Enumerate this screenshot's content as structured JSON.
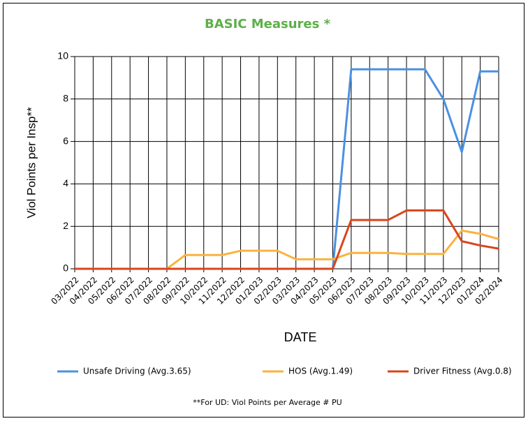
{
  "chart_data": {
    "type": "line",
    "title": "BASIC Measures *",
    "x_label": "DATE",
    "y_label": "Viol Points per Insp**",
    "footnote": "**For UD: Viol Points per Average # PU",
    "categories": [
      "03/2022",
      "04/2022",
      "05/2022",
      "06/2022",
      "07/2022",
      "08/2022",
      "09/2022",
      "10/2022",
      "11/2022",
      "12/2022",
      "01/2023",
      "02/2023",
      "03/2023",
      "04/2023",
      "05/2023",
      "06/2023",
      "07/2023",
      "08/2023",
      "09/2023",
      "10/2023",
      "11/2023",
      "12/2023",
      "01/2024",
      "02/2024"
    ],
    "series": [
      {
        "name": "Unsafe Driving (Avg.3.65)",
        "color": "#4a90e2",
        "values": [
          0,
          0,
          0,
          0,
          0,
          0,
          0,
          0,
          0,
          0,
          0,
          0,
          0,
          0,
          0,
          9.4,
          9.4,
          9.4,
          9.4,
          9.4,
          8.0,
          5.5,
          9.3,
          9.3
        ]
      },
      {
        "name": "HOS (Avg.1.49)",
        "color": "#fbb23f",
        "values": [
          0,
          0,
          0,
          0,
          0,
          0,
          0.65,
          0.65,
          0.65,
          0.85,
          0.85,
          0.85,
          0.45,
          0.45,
          0.45,
          0.75,
          0.75,
          0.75,
          0.7,
          0.7,
          0.7,
          1.8,
          1.65,
          1.4
        ]
      },
      {
        "name": "Driver Fitness (Avg.0.8)",
        "color": "#d9451c",
        "values": [
          0,
          0,
          0,
          0,
          0,
          0,
          0,
          0,
          0,
          0,
          0,
          0,
          0,
          0,
          0,
          2.3,
          2.3,
          2.3,
          2.75,
          2.75,
          2.75,
          1.3,
          1.1,
          0.95
        ]
      }
    ],
    "ylim": [
      0,
      10
    ],
    "yticks": [
      0,
      2,
      4,
      6,
      8,
      10
    ],
    "grid": true,
    "legend": "bottom"
  }
}
